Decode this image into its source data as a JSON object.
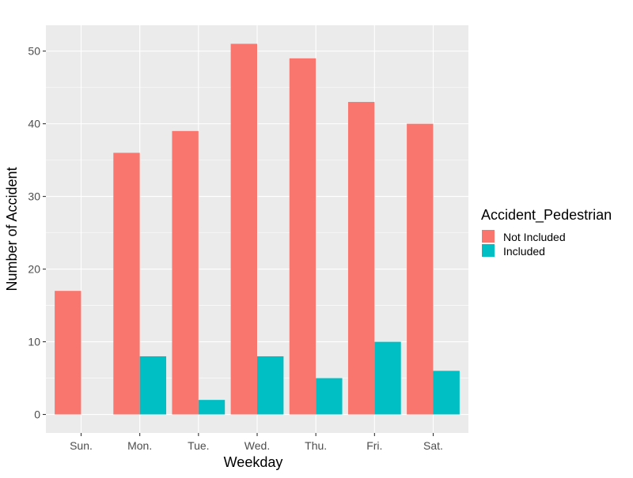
{
  "chart_data": {
    "type": "bar",
    "xlabel": "Weekday",
    "ylabel": "Number of Accident",
    "categories": [
      "Sun.",
      "Mon.",
      "Tue.",
      "Wed.",
      "Thu.",
      "Fri.",
      "Sat."
    ],
    "series": [
      {
        "name": "Not Included",
        "values": [
          17,
          36,
          39,
          51,
          49,
          43,
          40
        ],
        "color": "#F8766D"
      },
      {
        "name": "Included",
        "values": [
          0,
          8,
          2,
          8,
          5,
          10,
          6
        ],
        "color": "#00BFC4"
      }
    ],
    "ylim": [
      -2.55,
      53.55
    ],
    "yticks": [
      0,
      10,
      20,
      30,
      40,
      50
    ],
    "grid": true,
    "panel_background": "#EBEBEB",
    "grid_color": "#FFFFFF",
    "legend": {
      "title": "Accident_Pedestrian",
      "position": "right"
    }
  }
}
